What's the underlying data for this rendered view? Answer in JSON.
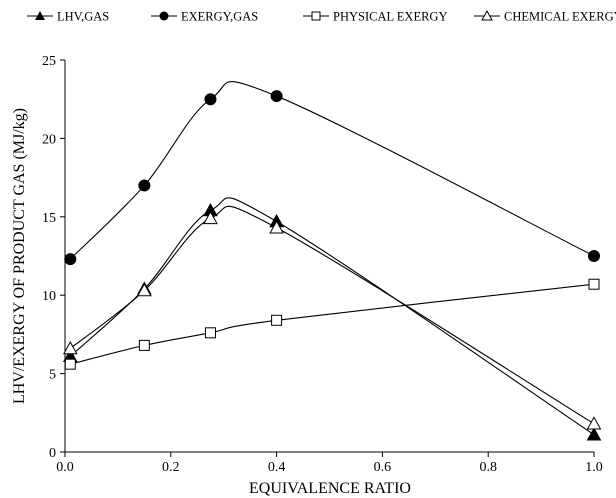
{
  "chart_data": {
    "type": "line",
    "title": "",
    "xlabel": "EQUIVALENCE RATIO",
    "ylabel": "LHV/EXERGY OF PRODUCT GAS (MJ/kg)",
    "xlim": [
      0,
      1.0
    ],
    "ylim": [
      0,
      25
    ],
    "xticks": [
      "0.0",
      "0.2",
      "0.4",
      "0.6",
      "0.8",
      "1.0"
    ],
    "yticks": [
      "0",
      "5",
      "10",
      "15",
      "20",
      "25"
    ],
    "grid": false,
    "legend_position": "top",
    "series": [
      {
        "name": "LHV,GAS",
        "marker": "filled-triangle",
        "x": [
          0.01,
          0.15,
          0.275,
          0.4,
          1.0
        ],
        "y": [
          6.1,
          10.4,
          15.4,
          14.7,
          1.1
        ]
      },
      {
        "name": "EXERGY,GAS",
        "marker": "filled-circle",
        "x": [
          0.01,
          0.15,
          0.275,
          0.4,
          1.0
        ],
        "y": [
          12.3,
          17.0,
          22.5,
          22.7,
          12.5
        ]
      },
      {
        "name": "PHYSICAL EXERGY",
        "marker": "open-square",
        "x": [
          0.01,
          0.15,
          0.275,
          0.4,
          1.0
        ],
        "y": [
          5.6,
          6.8,
          7.6,
          8.4,
          10.7
        ]
      },
      {
        "name": "CHEMICAL EXERGY",
        "marker": "open-triangle",
        "x": [
          0.01,
          0.15,
          0.275,
          0.4,
          1.0
        ],
        "y": [
          6.6,
          10.3,
          14.9,
          14.3,
          1.8
        ]
      }
    ]
  }
}
